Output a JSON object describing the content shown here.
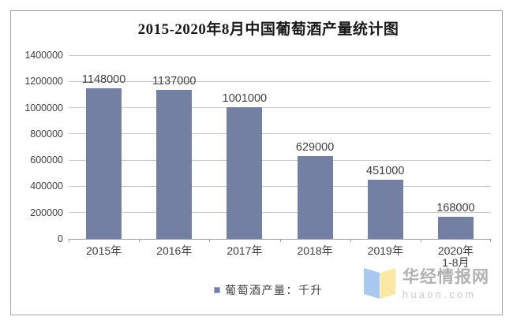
{
  "title": "2015-2020年8月中国葡萄酒产量统计图",
  "chart_data": {
    "type": "bar",
    "title": "2015-2020年8月中国葡萄酒产量统计图",
    "categories": [
      "2015年",
      "2016年",
      "2017年",
      "2018年",
      "2019年",
      "2020年\n1-8月"
    ],
    "values": [
      1148000,
      1137000,
      1001000,
      629000,
      451000,
      168000
    ],
    "series_name": "葡萄酒产量：千升",
    "xlabel": "",
    "ylabel": "",
    "ylim": [
      0,
      1400000
    ],
    "ytick_step": 200000,
    "ytick_labels": [
      "0",
      "200000",
      "400000",
      "600000",
      "800000",
      "1000000",
      "1200000",
      "1400000"
    ],
    "grid": true,
    "legend_position": "bottom",
    "bar_color": "#7480a3",
    "data_labels_visible": true
  },
  "legend": {
    "label": "葡萄酒产量：千升",
    "swatch_color": "#7480a3"
  },
  "watermark": {
    "site_name": "华经情报网",
    "site_url": "huaon.com",
    "logo_blue": "#a9c9f1",
    "logo_yellow": "#fae8a3"
  }
}
